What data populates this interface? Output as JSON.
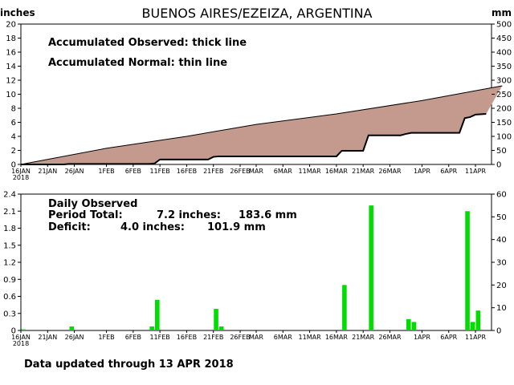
{
  "header": {
    "title": "BUENOS AIRES/EZEIZA, ARGENTINA",
    "left_unit": "inches",
    "right_unit": "mm"
  },
  "footer": {
    "updated": "Data updated through 13 APR 2018"
  },
  "colors": {
    "fill": "#c49a8e",
    "bar": "#00dd00",
    "line": "#000000"
  },
  "chart_data": [
    {
      "type": "area",
      "label_observed": "Accumulated Observed: thick line",
      "label_normal": "Accumulated Normal: thin line",
      "x_dates": [
        "16JAN",
        "21JAN",
        "26JAN",
        "1FEB",
        "6FEB",
        "11FEB",
        "16FEB",
        "21FEB",
        "26FEB",
        "MAR",
        "6MAR",
        "11MAR",
        "16MAR",
        "21MAR",
        "26MAR",
        "1APR",
        "6APR",
        "11APR"
      ],
      "x_year_label": "2018",
      "ylim": [
        0,
        20
      ],
      "y_ticks": [
        0,
        2,
        4,
        6,
        8,
        10,
        12,
        14,
        16,
        18,
        20
      ],
      "y2lim": [
        0,
        500
      ],
      "y2_ticks": [
        0,
        50,
        100,
        150,
        200,
        250,
        300,
        350,
        400,
        450,
        500
      ],
      "series": [
        {
          "name": "Accumulated Observed",
          "points": [
            [
              "16JAN",
              0.0
            ],
            [
              "19JAN",
              0.0
            ],
            [
              "24JAN",
              0.0
            ],
            [
              "25JAN",
              0.07
            ],
            [
              "9FEB",
              0.07
            ],
            [
              "10FEB",
              0.14
            ],
            [
              "11FEB",
              0.7
            ],
            [
              "20FEB",
              0.7
            ],
            [
              "21FEB",
              1.08
            ],
            [
              "22FEB",
              1.15
            ],
            [
              "16MAR",
              1.15
            ],
            [
              "17MAR",
              1.95
            ],
            [
              "21MAR",
              1.95
            ],
            [
              "22MAR",
              4.15
            ],
            [
              "28MAR",
              4.15
            ],
            [
              "29MAR",
              4.35
            ],
            [
              "30MAR",
              4.5
            ],
            [
              "8APR",
              4.5
            ],
            [
              "9APR",
              6.6
            ],
            [
              "10APR",
              6.75
            ],
            [
              "11APR",
              7.1
            ],
            [
              "13APR",
              7.2
            ]
          ]
        },
        {
          "name": "Accumulated Normal",
          "points": [
            [
              "16JAN",
              0.0
            ],
            [
              "1FEB",
              2.3
            ],
            [
              "16FEB",
              4.0
            ],
            [
              "MAR",
              5.7
            ],
            [
              "16MAR",
              7.2
            ],
            [
              "1APR",
              9.1
            ],
            [
              "16APR",
              11.2
            ]
          ]
        }
      ]
    },
    {
      "type": "bar",
      "label_title": "Daily Observed",
      "period_total": {
        "label": "Period Total:",
        "inches": "7.2 inches:",
        "mm": "183.6 mm"
      },
      "deficit": {
        "label": "Deficit:",
        "inches": "4.0 inches:",
        "mm": "101.9 mm"
      },
      "ylim": [
        0,
        2.4
      ],
      "y_ticks": [
        "0",
        "0.3",
        "0.6",
        "0.9",
        "1.2",
        "1.5",
        "1.8",
        "2.1",
        "2.4"
      ],
      "y2lim": [
        0,
        60
      ],
      "y2_ticks": [
        0,
        10,
        20,
        30,
        40,
        50,
        60
      ],
      "bars": [
        {
          "date": "16JAN",
          "value": 0.02
        },
        {
          "date": "25JAN",
          "value": 0.07
        },
        {
          "date": "9FEB",
          "value": 0.07
        },
        {
          "date": "10FEB",
          "value": 0.54
        },
        {
          "date": "21FEB",
          "value": 0.38
        },
        {
          "date": "22FEB",
          "value": 0.07
        },
        {
          "date": "17MAR",
          "value": 0.8
        },
        {
          "date": "22MAR",
          "value": 2.2
        },
        {
          "date": "29MAR",
          "value": 0.2
        },
        {
          "date": "30MAR",
          "value": 0.15
        },
        {
          "date": "9APR",
          "value": 2.1
        },
        {
          "date": "10APR",
          "value": 0.15
        },
        {
          "date": "11APR",
          "value": 0.35
        }
      ]
    }
  ]
}
